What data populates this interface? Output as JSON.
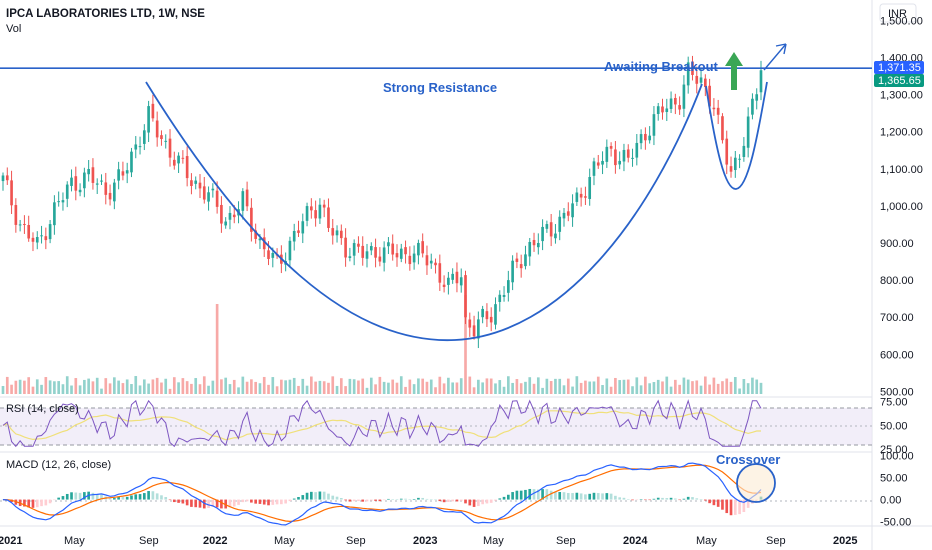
{
  "header": {
    "title": "IPCA LABORATORIES LTD, 1W, NSE",
    "vol_label": "Vol",
    "currency": "INR"
  },
  "colors": {
    "up": "#26a69a",
    "down": "#ef5350",
    "annotation_blue": "#2962c9",
    "rsi_line": "#7e57c2",
    "rsi_ma": "#f0e07a",
    "macd_line": "#2962ff",
    "signal_line": "#ff6d00",
    "arrow_green": "#3aa655",
    "price_badge_blue": "#2962ff",
    "price_badge_green": "#089981"
  },
  "annotations": {
    "strong_resistance": "Strong Resistance",
    "awaiting_breakout": "Awaiting Breakout",
    "crossover": "Crossover",
    "resistance_level": 1371.35,
    "last_price": 1365.65,
    "resistance_badge": "1,371.35",
    "last_price_badge": "1,365.65"
  },
  "chart_data": [
    {
      "type": "candlestick",
      "title": "IPCA LABORATORIES LTD, 1W, NSE",
      "x_ticks": [
        "2021",
        "May",
        "Sep",
        "2022",
        "May",
        "Sep",
        "2023",
        "May",
        "Sep",
        "2024",
        "May",
        "Sep",
        "2025"
      ],
      "y_ticks": [
        "1,500.00",
        "1,400.00",
        "1,300.00",
        "1,200.00",
        "1,100.00",
        "1,000.00",
        "900.00",
        "800.00",
        "700.00",
        "600.00",
        "500.00"
      ],
      "y_tick_values": [
        1500,
        1400,
        1300,
        1200,
        1100,
        1000,
        900,
        800,
        700,
        600,
        500
      ],
      "ylim": [
        485,
        1555
      ],
      "series_name": "",
      "close_anchors": [
        [
          0,
          1070
        ],
        [
          4,
          950
        ],
        [
          8,
          890
        ],
        [
          12,
          990
        ],
        [
          16,
          1060
        ],
        [
          20,
          1080
        ],
        [
          24,
          1040
        ],
        [
          28,
          1080
        ],
        [
          32,
          1190
        ],
        [
          34,
          1240
        ],
        [
          36,
          1200
        ],
        [
          40,
          1130
        ],
        [
          44,
          1070
        ],
        [
          48,
          1030
        ],
        [
          52,
          960
        ],
        [
          56,
          1010
        ],
        [
          60,
          900
        ],
        [
          64,
          840
        ],
        [
          68,
          920
        ],
        [
          72,
          990
        ],
        [
          74,
          1010
        ],
        [
          76,
          940
        ],
        [
          80,
          890
        ],
        [
          84,
          870
        ],
        [
          88,
          880
        ],
        [
          92,
          870
        ],
        [
          96,
          875
        ],
        [
          100,
          850
        ],
        [
          104,
          780
        ],
        [
          107,
          820
        ],
        [
          108,
          690
        ],
        [
          110,
          670
        ],
        [
          114,
          710
        ],
        [
          118,
          800
        ],
        [
          122,
          880
        ],
        [
          126,
          920
        ],
        [
          130,
          960
        ],
        [
          134,
          1010
        ],
        [
          138,
          1100
        ],
        [
          142,
          1150
        ],
        [
          146,
          1120
        ],
        [
          150,
          1200
        ],
        [
          154,
          1260
        ],
        [
          158,
          1290
        ],
        [
          160,
          1355
        ],
        [
          163,
          1340
        ],
        [
          166,
          1270
        ],
        [
          168,
          1160
        ],
        [
          170,
          1100
        ],
        [
          172,
          1140
        ],
        [
          175,
          1260
        ],
        [
          177,
          1366
        ]
      ],
      "volume_spikes": [
        [
          50,
          5.0
        ],
        [
          108,
          5.5
        ]
      ]
    },
    {
      "type": "line",
      "title": "RSI (14, close)",
      "y_ticks": [
        "75.00",
        "50.00",
        "25.00"
      ],
      "y_tick_values": [
        75,
        50,
        25
      ],
      "ylim": [
        22,
        80
      ],
      "bands": [
        70,
        30
      ],
      "last_value": 68
    },
    {
      "type": "line",
      "title": "MACD (12, 26, close)",
      "y_ticks": [
        "100.00",
        "50.00",
        "0.00",
        "-50.00"
      ],
      "y_tick_values": [
        100,
        50,
        0,
        -50
      ],
      "ylim": [
        -60,
        108
      ]
    }
  ]
}
